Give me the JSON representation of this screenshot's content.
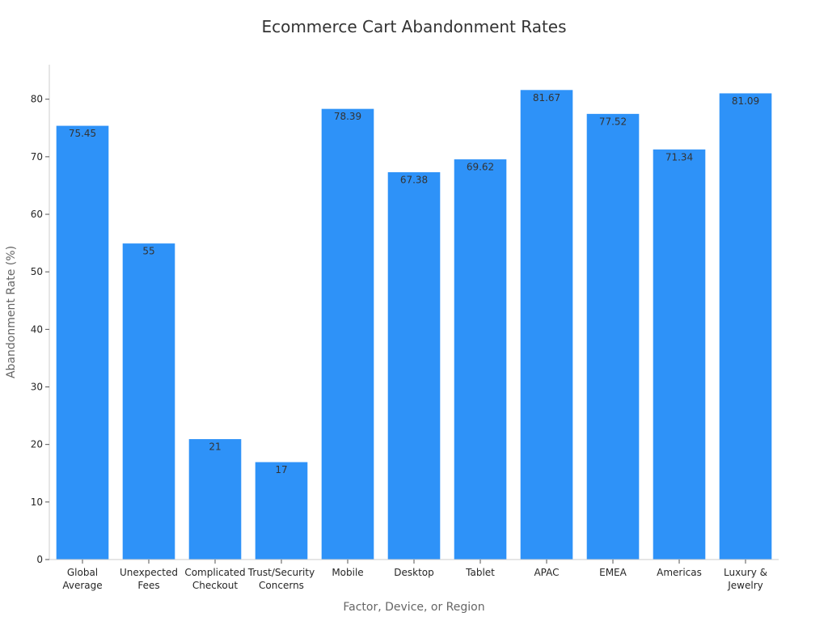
{
  "chart_data": {
    "type": "bar",
    "title": "Ecommerce Cart Abandonment Rates",
    "xlabel": "Factor, Device, or Region",
    "ylabel": "Abandonment Rate (%)",
    "categories": [
      [
        "Global",
        "Average"
      ],
      [
        "Unexpected",
        "Fees"
      ],
      [
        "Complicated",
        "Checkout"
      ],
      [
        "Trust/Security",
        "Concerns"
      ],
      [
        "Mobile"
      ],
      [
        "Desktop"
      ],
      [
        "Tablet"
      ],
      [
        "APAC"
      ],
      [
        "EMEA"
      ],
      [
        "Americas"
      ],
      [
        "Luxury &",
        "Jewelry"
      ]
    ],
    "values": [
      75.45,
      55,
      21,
      17,
      78.39,
      67.38,
      69.62,
      81.67,
      77.52,
      71.34,
      81.09
    ],
    "value_labels": [
      "75.45",
      "55",
      "21",
      "17",
      "78.39",
      "67.38",
      "69.62",
      "81.67",
      "77.52",
      "71.34",
      "81.09"
    ],
    "ylim": [
      0,
      86
    ],
    "yticks": [
      0,
      10,
      20,
      30,
      40,
      50,
      60,
      70,
      80
    ],
    "grid": false,
    "legend": "none",
    "colors": {
      "bar": "#2e92f8",
      "title": "#333333",
      "axis_label": "#666666",
      "tick_label": "#262626"
    }
  }
}
